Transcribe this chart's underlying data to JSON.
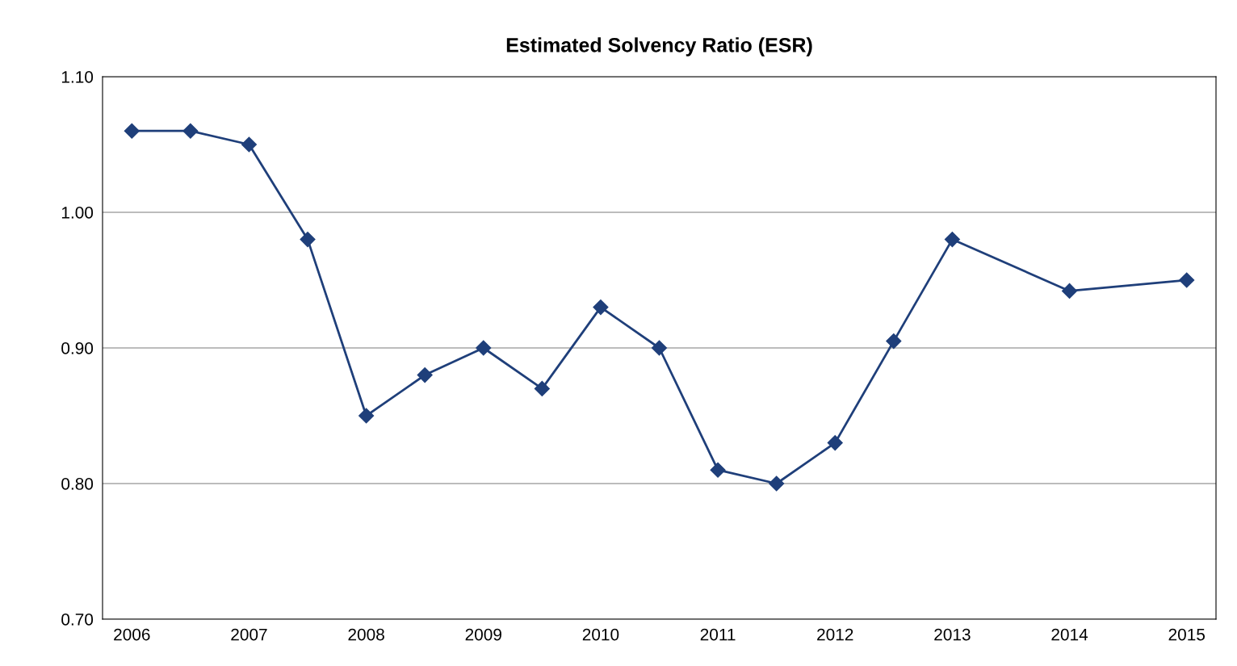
{
  "chart_data": {
    "type": "line",
    "title": "Estimated Solvency Ratio (ESR)",
    "categories": [
      "2006",
      null,
      "2007",
      null,
      "2008",
      null,
      "2009",
      null,
      "2010",
      null,
      "2011",
      null,
      "2012",
      null,
      "2013",
      null,
      "2014",
      null,
      "2015"
    ],
    "series": [
      {
        "color": "#1f3f7a",
        "values": [
          1.06,
          1.06,
          1.05,
          0.98,
          0.85,
          0.88,
          0.9,
          0.87,
          0.93,
          0.9,
          0.81,
          0.8,
          0.83,
          0.905,
          0.98,
          null,
          0.942,
          null,
          0.95
        ]
      }
    ],
    "ylim": [
      0.7,
      1.1
    ],
    "yticks": [
      {
        "value": 0.7,
        "label": "0.70"
      },
      {
        "value": 0.8,
        "label": "0.80"
      },
      {
        "value": 0.9,
        "label": "0.90"
      },
      {
        "value": 1.0,
        "label": "1.00"
      },
      {
        "value": 1.1,
        "label": "1.10"
      }
    ],
    "grid": "y",
    "marker": "diamond",
    "line_style": "solid"
  }
}
